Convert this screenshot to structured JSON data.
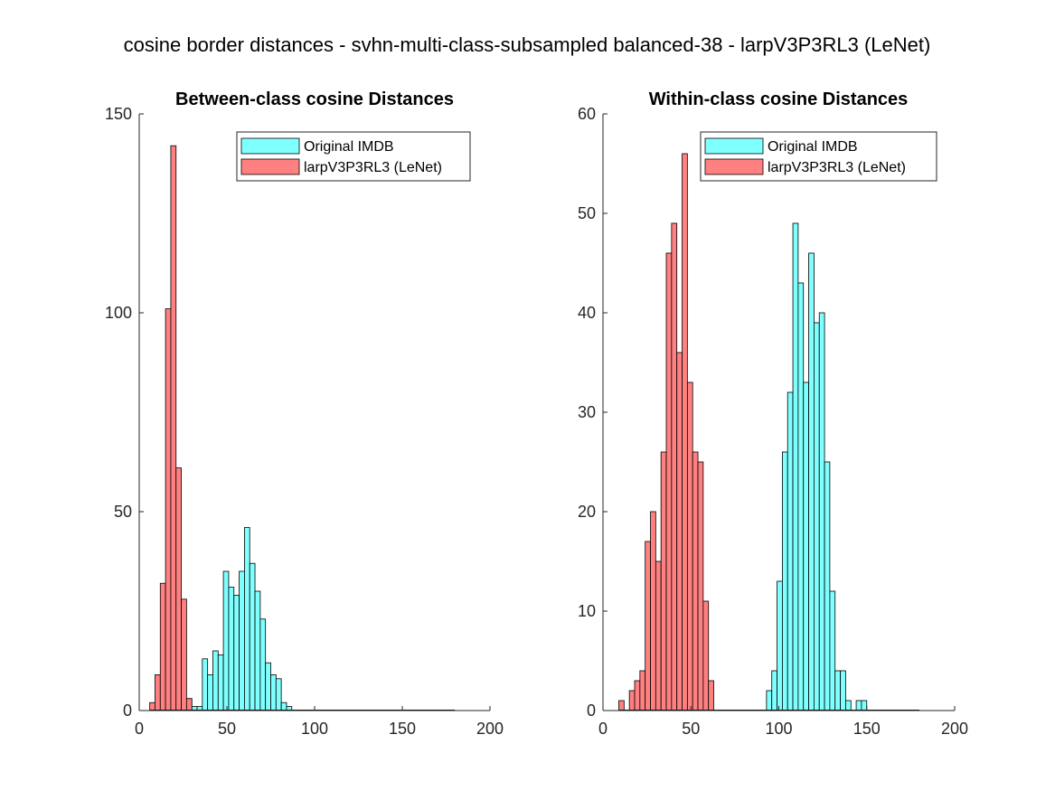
{
  "figure": {
    "title": "cosine border distances - svhn-multi-class-subsampled balanced-38 - larpV3P3RL3 (LeNet)"
  },
  "colors": {
    "original": "#80ffff",
    "larp": "#ff8080",
    "edge": "#000000",
    "axis": "#262626"
  },
  "chart_data": [
    {
      "type": "bar",
      "title": "Between-class cosine Distances",
      "xlabel": "",
      "ylabel": "",
      "xlim": [
        0,
        200
      ],
      "ylim": [
        0,
        150
      ],
      "xticks": [
        0,
        50,
        100,
        150,
        200
      ],
      "yticks": [
        0,
        50,
        100,
        150
      ],
      "grid": false,
      "legend_position": "top-right",
      "bin_width": 3,
      "bins_start": [
        6,
        9,
        12,
        15,
        18,
        21,
        24,
        27,
        30,
        33,
        36,
        39,
        42,
        45,
        48,
        51,
        54,
        57,
        60,
        63,
        66,
        69,
        72,
        75,
        78,
        81,
        84,
        87,
        90,
        93,
        96,
        99,
        102,
        105,
        108,
        111,
        114,
        117,
        120,
        123,
        126,
        129,
        132,
        135,
        138,
        141,
        144,
        147,
        150,
        153,
        156,
        159,
        162,
        165,
        168,
        171,
        174,
        177
      ],
      "series": [
        {
          "name": "Original IMDB",
          "color_key": "original",
          "values": [
            0,
            0,
            0,
            0,
            0,
            0,
            1,
            3,
            1,
            1,
            13,
            9,
            15,
            14,
            35,
            31,
            29,
            35,
            46,
            37,
            30,
            23,
            12,
            9,
            8,
            2,
            1,
            0,
            0,
            0,
            0,
            0,
            0,
            0,
            0,
            0,
            0,
            0,
            0,
            0,
            0,
            0,
            0,
            0,
            0,
            0,
            0,
            0,
            0,
            0,
            0,
            0,
            0,
            0,
            0,
            0,
            0,
            0
          ]
        },
        {
          "name": "larpV3P3RL3 (LeNet)",
          "color_key": "larp",
          "values": [
            2,
            9,
            32,
            101,
            142,
            61,
            28,
            3,
            0,
            0,
            0,
            0,
            0,
            0,
            0,
            0,
            0,
            0,
            0,
            0,
            0,
            0,
            0,
            0,
            0,
            0,
            0,
            0,
            0,
            0,
            0,
            0,
            0,
            0,
            0,
            0,
            0,
            0,
            0,
            0,
            0,
            0,
            0,
            0,
            0,
            0,
            0,
            0,
            0,
            0,
            0,
            0,
            0,
            0,
            0,
            0,
            0,
            0
          ]
        }
      ]
    },
    {
      "type": "bar",
      "title": "Within-class cosine Distances",
      "xlabel": "",
      "ylabel": "",
      "xlim": [
        0,
        200
      ],
      "ylim": [
        0,
        60
      ],
      "xticks": [
        0,
        50,
        100,
        150,
        200
      ],
      "yticks": [
        0,
        10,
        20,
        30,
        40,
        50,
        60
      ],
      "grid": false,
      "legend_position": "top-right",
      "bin_width": 3,
      "bins_start": [
        9,
        12,
        15,
        18,
        21,
        24,
        27,
        30,
        33,
        36,
        39,
        42,
        45,
        48,
        51,
        54,
        57,
        60,
        63,
        66,
        69,
        72,
        75,
        78,
        81,
        84,
        87,
        90,
        93,
        96,
        99,
        102,
        105,
        108,
        111,
        114,
        117,
        120,
        123,
        126,
        129,
        132,
        135,
        138,
        141,
        144,
        147,
        150,
        153,
        156,
        159,
        162,
        165,
        168,
        171,
        174,
        177
      ],
      "series": [
        {
          "name": "Original IMDB",
          "color_key": "original",
          "values": [
            0,
            0,
            0,
            0,
            0,
            0,
            0,
            0,
            0,
            0,
            0,
            0,
            0,
            0,
            0,
            0,
            0,
            0,
            0,
            0,
            0,
            0,
            0,
            0,
            0,
            0,
            0,
            0,
            2,
            4,
            13,
            26,
            32,
            49,
            43,
            33,
            46,
            39,
            40,
            25,
            12,
            4,
            4,
            1,
            0,
            1,
            1,
            0,
            0,
            0,
            0,
            0,
            0,
            0,
            0,
            0,
            0
          ]
        },
        {
          "name": "larpV3P3RL3 (LeNet)",
          "color_key": "larp",
          "values": [
            1,
            0,
            2,
            3,
            4,
            17,
            20,
            15,
            26,
            46,
            49,
            36,
            56,
            33,
            26,
            25,
            11,
            3,
            0,
            0,
            0,
            0,
            0,
            0,
            0,
            0,
            0,
            0,
            0,
            0,
            0,
            0,
            0,
            0,
            0,
            0,
            0,
            0,
            0,
            0,
            0,
            0,
            0,
            0,
            0,
            0,
            0,
            0,
            0,
            0,
            0,
            0,
            0,
            0,
            0,
            0,
            0
          ]
        }
      ]
    }
  ]
}
